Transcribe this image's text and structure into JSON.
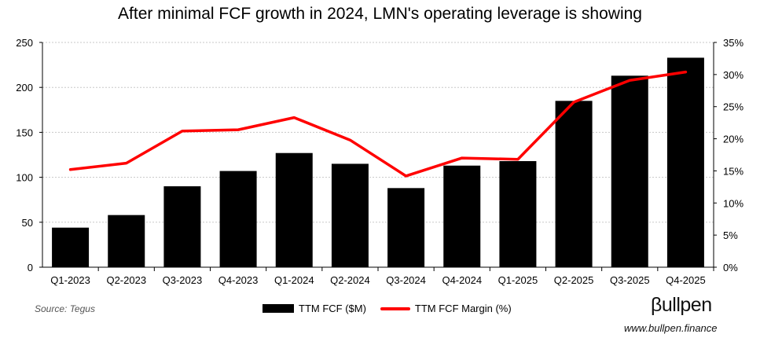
{
  "chart_data": {
    "type": "bar+line",
    "title": "After minimal FCF growth in 2024, LMN's operating leverage is showing",
    "categories": [
      "Q1-2023",
      "Q2-2023",
      "Q3-2023",
      "Q4-2023",
      "Q1-2024",
      "Q2-2024",
      "Q3-2024",
      "Q4-2024",
      "Q1-2025",
      "Q2-2025",
      "Q3-2025",
      "Q4-2025"
    ],
    "series": [
      {
        "name": "TTM FCF ($M)",
        "type": "bar",
        "axis": "left",
        "color": "#000000",
        "values": [
          44,
          58,
          90,
          107,
          127,
          115,
          88,
          113,
          118,
          185,
          213,
          233
        ]
      },
      {
        "name": "TTM FCF Margin (%)",
        "type": "line",
        "axis": "right",
        "color": "#ff0000",
        "values": [
          15.2,
          16.2,
          21.2,
          21.4,
          23.3,
          19.8,
          14.2,
          17.0,
          16.8,
          25.7,
          29.1,
          30.4
        ]
      }
    ],
    "y_left": {
      "range": [
        0,
        250
      ],
      "ticks": [
        "0",
        "50",
        "100",
        "150",
        "200",
        "250"
      ]
    },
    "y_right": {
      "range": [
        0,
        35
      ],
      "ticks": [
        "0%",
        "5%",
        "10%",
        "15%",
        "20%",
        "25%",
        "30%",
        "35%"
      ]
    },
    "grid": "horizontal dotted",
    "legend": "bottom-center"
  },
  "footer": {
    "source": "Source: Tegus",
    "logo": "βullpen",
    "website": "www.bullpen.finance"
  }
}
